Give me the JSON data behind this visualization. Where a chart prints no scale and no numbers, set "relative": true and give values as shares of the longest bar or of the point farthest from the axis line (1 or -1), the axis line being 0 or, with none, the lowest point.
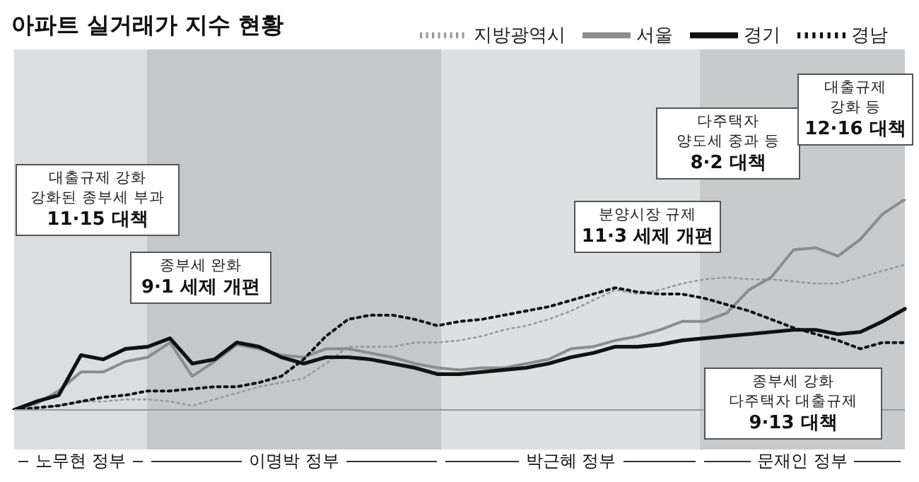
{
  "chart_data": {
    "type": "line",
    "title": "아파트 실거래가 지수 현황",
    "relative": true,
    "legend": "top right",
    "grid": false,
    "categories": [
      null,
      null,
      null,
      null,
      null,
      null,
      null,
      null,
      null,
      null,
      null,
      null,
      null,
      null,
      null,
      null,
      null,
      null,
      null,
      null,
      null,
      null,
      null,
      null,
      null,
      null,
      null,
      null,
      null,
      null,
      null,
      null,
      null,
      null,
      null,
      null,
      null,
      null,
      null,
      null,
      null
    ],
    "series": [
      {
        "name": "지방광역시",
        "color": "#9a9a9a",
        "line_style": "dotted",
        "values": [
          0,
          0.01,
          0.02,
          0.04,
          0.04,
          0.05,
          0.05,
          0.04,
          0.02,
          0.05,
          0.08,
          0.11,
          0.13,
          0.15,
          0.22,
          0.3,
          0.3,
          0.3,
          0.32,
          0.32,
          0.33,
          0.35,
          0.38,
          0.4,
          0.43,
          0.47,
          0.52,
          0.57,
          0.55,
          0.57,
          0.6,
          0.62,
          0.63,
          0.62,
          0.62,
          0.61,
          0.6,
          0.6,
          0.63,
          0.66,
          0.69
        ]
      },
      {
        "name": "서울",
        "color": "#8c8c8c",
        "line_style": "solid",
        "values": [
          0,
          0.03,
          0.09,
          0.18,
          0.18,
          0.23,
          0.25,
          0.32,
          0.16,
          0.23,
          0.31,
          0.29,
          0.26,
          0.25,
          0.29,
          0.29,
          0.27,
          0.25,
          0.22,
          0.2,
          0.19,
          0.2,
          0.2,
          0.22,
          0.24,
          0.29,
          0.3,
          0.33,
          0.35,
          0.38,
          0.42,
          0.42,
          0.46,
          0.57,
          0.63,
          0.76,
          0.77,
          0.73,
          0.81,
          0.93,
          1
        ]
      },
      {
        "name": "경기",
        "color": "#111111",
        "line_style": "solid",
        "values": [
          0,
          0.04,
          0.07,
          0.26,
          0.24,
          0.29,
          0.3,
          0.34,
          0.22,
          0.24,
          0.32,
          0.3,
          0.25,
          0.22,
          0.25,
          0.25,
          0.24,
          0.22,
          0.2,
          0.17,
          0.17,
          0.18,
          0.19,
          0.2,
          0.22,
          0.25,
          0.27,
          0.3,
          0.3,
          0.31,
          0.33,
          0.34,
          0.35,
          0.36,
          0.37,
          0.38,
          0.38,
          0.36,
          0.37,
          0.42,
          0.48
        ]
      },
      {
        "name": "경남",
        "color": "#111111",
        "line_style": "dotted",
        "values": [
          0,
          0.01,
          0.02,
          0.04,
          0.06,
          0.07,
          0.09,
          0.09,
          0.1,
          0.11,
          0.11,
          0.13,
          0.16,
          0.24,
          0.35,
          0.43,
          0.45,
          0.45,
          0.43,
          0.4,
          0.42,
          0.43,
          0.45,
          0.47,
          0.49,
          0.52,
          0.55,
          0.58,
          0.56,
          0.55,
          0.55,
          0.53,
          0.5,
          0.47,
          0.43,
          0.39,
          0.36,
          0.33,
          0.29,
          0.32,
          0.32
        ]
      }
    ],
    "annotations": [
      "대출규제 강화\n강화된 종부세 부과\n11·15 대책",
      "종부세 완화\n9·1 세제 개편",
      "분양시장 규제\n11·3 세제 개편",
      "다주택자\n양도세 중과 등\n8·2 대책",
      "종부세 강화\n다주택자 대출규제\n9·13 대책",
      "대출규제\n강화 등\n12·16 대책",
      "노무현 정부",
      "이명박 정부",
      "박근혜 정부",
      "문재인 정부"
    ]
  }
}
